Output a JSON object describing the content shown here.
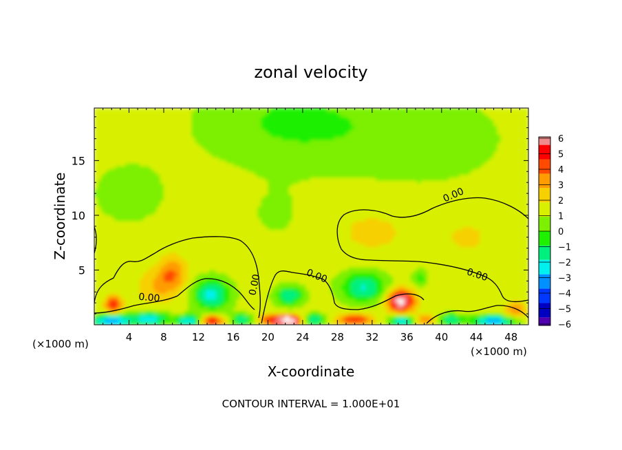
{
  "chart_data": {
    "type": "heatmap",
    "title": "zonal velocity",
    "xlabel": "X-coordinate",
    "ylabel": "Z-coordinate",
    "x_unit_left": "(×1000 m)",
    "x_unit_right": "(×1000 m)",
    "footer": "CONTOUR INTERVAL = 1.000E+01",
    "xlim": [
      0,
      50
    ],
    "ylim": [
      0,
      19.8
    ],
    "xticks": [
      4,
      8,
      12,
      16,
      20,
      24,
      28,
      32,
      36,
      40,
      44,
      48
    ],
    "yticks": [
      5,
      10,
      15
    ],
    "colorbar": {
      "ticks": [
        6,
        5,
        4,
        3,
        2,
        1,
        0,
        -1,
        -2,
        -3,
        -4,
        -5,
        -6
      ],
      "tick_labels": [
        "6",
        "5",
        "4",
        "3",
        "2",
        "1",
        "0",
        "−1",
        "−2",
        "−3",
        "−4",
        "−5",
        "−6"
      ],
      "colors": [
        "#f08c8c",
        "#ff0000",
        "#ff4a00",
        "#ff9c00",
        "#f6d000",
        "#d8f000",
        "#7cf000",
        "#1ef000",
        "#00f080",
        "#00f0f0",
        "#0090ff",
        "#0038ff",
        "#0000c0",
        "#5000b0"
      ]
    },
    "contour_labels": [
      {
        "text": "0.00",
        "x": 41.5,
        "z": 11.6,
        "angle": -24
      },
      {
        "text": "0.00",
        "x": 44.0,
        "z": 4.3,
        "angle": 18
      },
      {
        "text": "0.00",
        "x": 25.5,
        "z": 4.2,
        "angle": 22
      },
      {
        "text": "0.00",
        "x": 18.8,
        "z": 3.6,
        "angle": -78
      },
      {
        "text": "0.00",
        "x": 6.3,
        "z": 2.2,
        "angle": 5
      }
    ],
    "features": [
      {
        "type": "background",
        "value": 0.4
      },
      {
        "type": "blob",
        "x": 23,
        "z": 18.5,
        "rx": 10,
        "rz": 4,
        "value": -1.6
      },
      {
        "type": "blob",
        "x": 38,
        "z": 17,
        "rx": 9,
        "rz": 4,
        "value": -1.0
      },
      {
        "type": "blob",
        "x": 4,
        "z": 12,
        "rx": 6,
        "rz": 4,
        "value": -0.6
      },
      {
        "type": "blob",
        "x": 32,
        "z": 8.5,
        "rx": 5,
        "rz": 2.5,
        "value": 0.8
      },
      {
        "type": "blob",
        "x": 43,
        "z": 8,
        "rx": 4,
        "rz": 2.5,
        "value": 0.7
      },
      {
        "type": "blob",
        "x": 21,
        "z": 10,
        "rx": 4,
        "rz": 3,
        "value": -0.5
      },
      {
        "type": "blob",
        "x": 9,
        "z": 4.7,
        "rx": 1.6,
        "rz": 1.6,
        "value": 2.6
      },
      {
        "type": "blob",
        "x": 7,
        "z": 3.5,
        "rx": 2,
        "rz": 1.5,
        "value": 1.5
      },
      {
        "type": "blob",
        "x": 2.2,
        "z": 1.9,
        "rx": 0.9,
        "rz": 0.8,
        "value": 4.2
      },
      {
        "type": "blob",
        "x": 13.5,
        "z": 2.8,
        "rx": 2.1,
        "rz": 1.4,
        "value": -3.8
      },
      {
        "type": "blob",
        "x": 22.5,
        "z": 2.7,
        "rx": 1.6,
        "rz": 0.9,
        "value": -3.4
      },
      {
        "type": "blob",
        "x": 31,
        "z": 3.5,
        "rx": 2.6,
        "rz": 1.4,
        "value": -3.5
      },
      {
        "type": "blob",
        "x": 35.3,
        "z": 2.2,
        "rx": 1.5,
        "rz": 1.0,
        "value": 6.2
      },
      {
        "type": "blob",
        "x": 37.5,
        "z": 4.3,
        "rx": 0.9,
        "rz": 0.8,
        "value": -1.8
      },
      {
        "type": "blob",
        "x": 48.5,
        "z": 1.3,
        "rx": 1.2,
        "rz": 0.8,
        "value": 2.5
      },
      {
        "type": "blob",
        "x": 2,
        "z": 0.4,
        "rx": 2.5,
        "rz": 0.55,
        "value": -5
      },
      {
        "type": "blob",
        "x": 6.5,
        "z": 0.6,
        "rx": 2,
        "rz": 0.6,
        "value": -4
      },
      {
        "type": "blob",
        "x": 11,
        "z": 0.4,
        "rx": 1.5,
        "rz": 0.5,
        "value": -4.5
      },
      {
        "type": "blob",
        "x": 13.5,
        "z": 0.4,
        "rx": 1.5,
        "rz": 0.5,
        "value": 4.5
      },
      {
        "type": "blob",
        "x": 17,
        "z": 0.5,
        "rx": 1.5,
        "rz": 0.5,
        "value": -3
      },
      {
        "type": "blob",
        "x": 20.5,
        "z": 0.5,
        "rx": 1.5,
        "rz": 0.5,
        "value": 4
      },
      {
        "type": "blob",
        "x": 22.5,
        "z": 0.4,
        "rx": 1.2,
        "rz": 0.5,
        "value": 6.5
      },
      {
        "type": "blob",
        "x": 25.5,
        "z": 0.5,
        "rx": 1.2,
        "rz": 0.5,
        "value": -3.5
      },
      {
        "type": "blob",
        "x": 30,
        "z": 0.5,
        "rx": 2,
        "rz": 0.5,
        "value": 4
      },
      {
        "type": "blob",
        "x": 35.5,
        "z": 0.4,
        "rx": 1.5,
        "rz": 0.5,
        "value": -4.5
      },
      {
        "type": "blob",
        "x": 38,
        "z": 0.5,
        "rx": 1.2,
        "rz": 0.5,
        "value": 3
      },
      {
        "type": "blob",
        "x": 41,
        "z": 0.5,
        "rx": 1.5,
        "rz": 0.5,
        "value": -3
      },
      {
        "type": "blob",
        "x": 46,
        "z": 0.4,
        "rx": 2.5,
        "rz": 0.5,
        "value": -5
      }
    ]
  }
}
